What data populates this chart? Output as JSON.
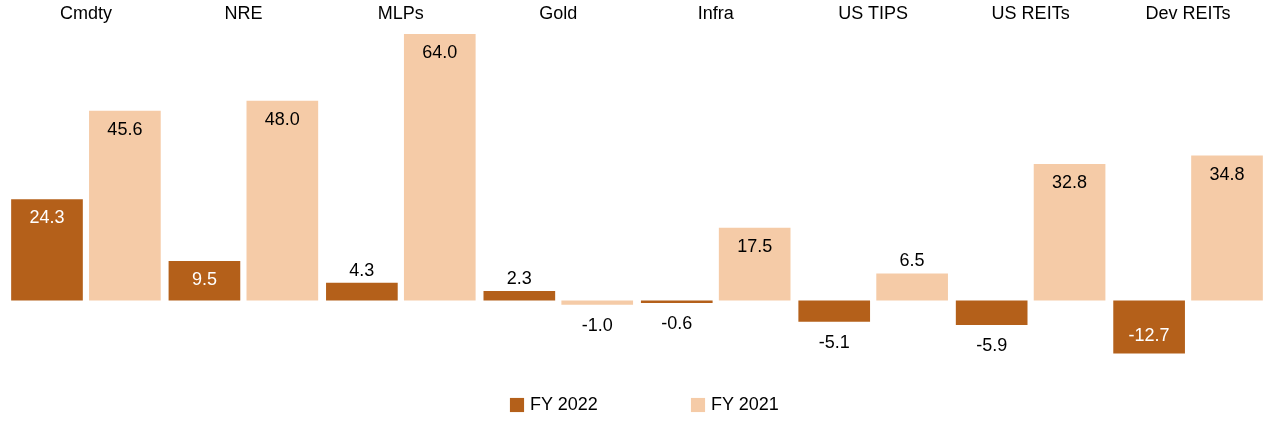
{
  "chart_data": {
    "type": "bar",
    "categories": [
      "Cmdty",
      "NRE",
      "MLPs",
      "Gold",
      "Infra",
      "US TIPS",
      "US REITs",
      "Dev REITs"
    ],
    "series": [
      {
        "name": "FY 2022",
        "color": "#b4601a",
        "values": [
          24.3,
          9.5,
          4.3,
          2.3,
          -0.6,
          -5.1,
          -5.9,
          -12.7
        ],
        "value_labels": [
          "24.3",
          "9.5",
          "4.3",
          "2.3",
          "-0.6",
          "-5.1",
          "-5.9",
          "-12.7"
        ]
      },
      {
        "name": "FY 2021",
        "color": "#f5cba7",
        "values": [
          45.6,
          48.0,
          64.0,
          -1.0,
          17.5,
          6.5,
          32.8,
          34.8
        ],
        "value_labels": [
          "45.6",
          "48.0",
          "64.0",
          "-1.0",
          "17.5",
          "6.5",
          "32.8",
          "34.8"
        ]
      }
    ],
    "legend": "bottom"
  }
}
